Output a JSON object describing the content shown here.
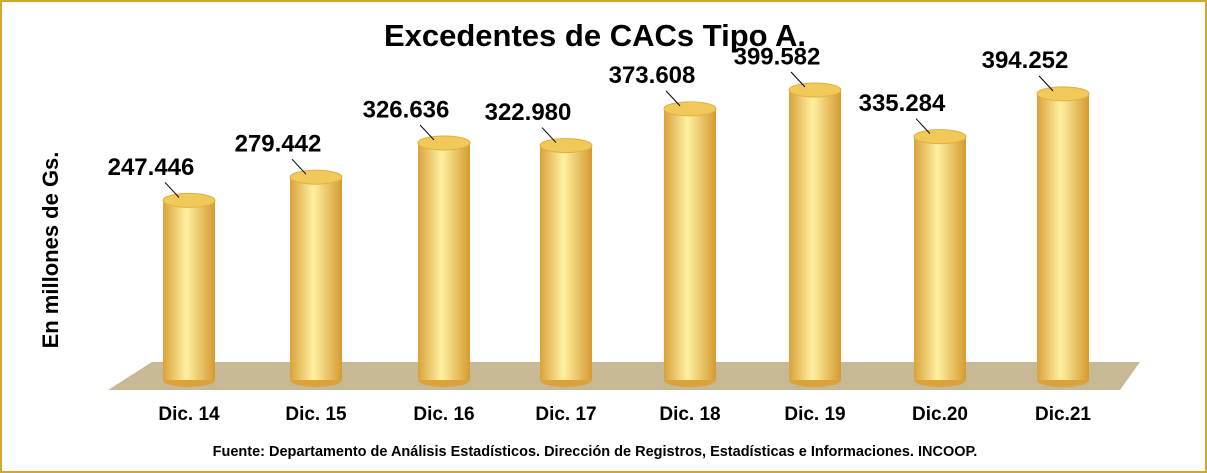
{
  "chart_data": {
    "type": "bar",
    "title": "Excedentes de CACs Tipo A.",
    "y_label": "En millones de Gs.",
    "source": "Fuente: Departamento de Análisis Estadísticos. Dirección de Registros, Estadísticas e Informaciones. INCOOP.",
    "categories": [
      "Dic. 14",
      "Dic. 15",
      "Dic. 16",
      "Dic. 17",
      "Dic. 18",
      "Dic. 19",
      "Dic.20",
      "Dic.21"
    ],
    "values": [
      247446,
      279442,
      326636,
      322980,
      373608,
      399582,
      335284,
      394252
    ],
    "value_labels": [
      "247.446",
      "279.442",
      "326.636",
      "322.980",
      "373.608",
      "399.582",
      "335.284",
      "394.252"
    ],
    "color": "#f0c95a"
  }
}
